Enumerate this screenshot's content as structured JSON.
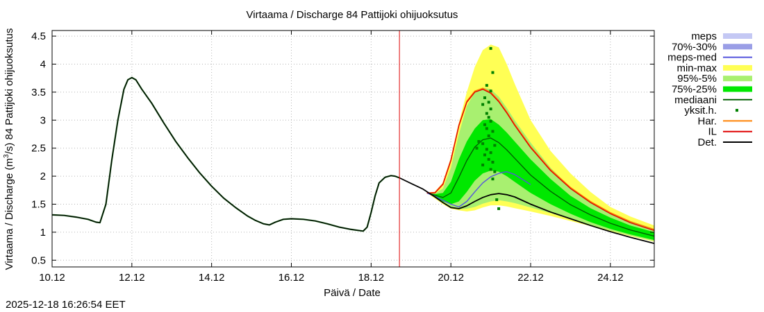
{
  "chart_data": {
    "type": "line",
    "title": "Virtaama / Discharge  84 Pattijoki ohijuoksutus",
    "xlabel": "Päivä / Date",
    "ylabel_prefix": "Virtaama / Discharge (m",
    "ylabel_sup": "3",
    "ylabel_suffix": "/s)  84 Pattijoki ohijuoksutus",
    "x_unit": "days since 10.12",
    "xlim": [
      0,
      15.1
    ],
    "ylim": [
      0.38,
      4.6
    ],
    "x_ticks": [
      {
        "x": 0,
        "label": "10.12"
      },
      {
        "x": 2,
        "label": "12.12"
      },
      {
        "x": 4,
        "label": "14.12"
      },
      {
        "x": 6,
        "label": "16.12"
      },
      {
        "x": 8,
        "label": "18.12"
      },
      {
        "x": 10,
        "label": "20.12"
      },
      {
        "x": 12,
        "label": "22.12"
      },
      {
        "x": 14,
        "label": "24.12"
      }
    ],
    "y_ticks": [
      {
        "y": 0.5,
        "label": "0.5"
      },
      {
        "y": 1,
        "label": "1"
      },
      {
        "y": 1.5,
        "label": "1.5"
      },
      {
        "y": 2,
        "label": "2"
      },
      {
        "y": 2.5,
        "label": "2.5"
      },
      {
        "y": 3,
        "label": "3"
      },
      {
        "y": 3.5,
        "label": "3.5"
      },
      {
        "y": 4,
        "label": "4"
      },
      {
        "y": 4.5,
        "label": "4.5"
      }
    ],
    "grid": true,
    "now_x": 8.71,
    "now_color": "#e00000",
    "observed": {
      "name": "Det.",
      "color": "#000000",
      "x": [
        0,
        0.3,
        0.6,
        0.9,
        1.1,
        1.2,
        1.35,
        1.5,
        1.65,
        1.8,
        1.9,
        2.0,
        2.1,
        2.25,
        2.5,
        2.8,
        3.1,
        3.4,
        3.7,
        4.0,
        4.3,
        4.6,
        4.9,
        5.1,
        5.3,
        5.45,
        5.6,
        5.8,
        6.0,
        6.3,
        6.6,
        6.9,
        7.2,
        7.5,
        7.8,
        7.9,
        8.0,
        8.1,
        8.2,
        8.35,
        8.5,
        8.6,
        8.71
      ],
      "y": [
        1.31,
        1.3,
        1.27,
        1.23,
        1.18,
        1.17,
        1.5,
        2.3,
        3.0,
        3.55,
        3.72,
        3.76,
        3.72,
        3.55,
        3.3,
        2.95,
        2.62,
        2.33,
        2.06,
        1.82,
        1.61,
        1.44,
        1.29,
        1.21,
        1.15,
        1.13,
        1.18,
        1.23,
        1.24,
        1.23,
        1.2,
        1.15,
        1.09,
        1.05,
        1.02,
        1.09,
        1.35,
        1.65,
        1.88,
        1.98,
        2.01,
        2.0,
        1.97
      ]
    },
    "bands": [
      {
        "name": "min-max",
        "color": "#ffff55",
        "x": [
          9.4,
          9.6,
          9.8,
          10.0,
          10.2,
          10.4,
          10.6,
          10.8,
          11.0,
          11.2,
          11.4,
          11.6,
          12.0,
          12.5,
          13.0,
          13.5,
          14.0,
          14.5,
          15.1
        ],
        "upper": [
          1.7,
          1.7,
          1.83,
          2.3,
          2.95,
          3.5,
          3.95,
          4.25,
          4.35,
          4.3,
          4.0,
          3.65,
          3.0,
          2.45,
          2.05,
          1.72,
          1.45,
          1.28,
          1.12
        ],
        "lower": [
          1.7,
          1.6,
          1.5,
          1.42,
          1.39,
          1.37,
          1.39,
          1.44,
          1.48,
          1.48,
          1.46,
          1.43,
          1.37,
          1.29,
          1.2,
          1.11,
          1.02,
          0.93,
          0.83
        ]
      },
      {
        "name": "95%-5%",
        "color": "#a8f070",
        "x": [
          9.4,
          9.6,
          9.8,
          10.0,
          10.2,
          10.4,
          10.6,
          10.8,
          11.0,
          11.2,
          11.4,
          11.6,
          12.0,
          12.5,
          13.0,
          13.5,
          14.0,
          14.5,
          15.1
        ],
        "upper": [
          1.7,
          1.69,
          1.78,
          2.15,
          2.75,
          3.25,
          3.5,
          3.58,
          3.55,
          3.42,
          3.22,
          3.0,
          2.6,
          2.15,
          1.8,
          1.55,
          1.35,
          1.2,
          1.06
        ],
        "lower": [
          1.7,
          1.62,
          1.52,
          1.45,
          1.41,
          1.42,
          1.45,
          1.51,
          1.55,
          1.57,
          1.55,
          1.52,
          1.44,
          1.34,
          1.23,
          1.13,
          1.03,
          0.94,
          0.84
        ]
      },
      {
        "name": "75%-25%",
        "color": "#00e800",
        "x": [
          9.4,
          9.6,
          9.8,
          10.0,
          10.2,
          10.4,
          10.6,
          10.8,
          11.0,
          11.2,
          11.4,
          11.6,
          12.0,
          12.5,
          13.0,
          13.5,
          14.0,
          14.5,
          15.1
        ],
        "upper": [
          1.7,
          1.68,
          1.7,
          1.9,
          2.3,
          2.62,
          2.85,
          3.0,
          3.02,
          2.92,
          2.78,
          2.62,
          2.3,
          1.95,
          1.65,
          1.43,
          1.26,
          1.12,
          1.0
        ],
        "lower": [
          1.7,
          1.63,
          1.55,
          1.5,
          1.55,
          1.72,
          1.92,
          2.05,
          2.1,
          2.08,
          2.0,
          1.9,
          1.7,
          1.5,
          1.33,
          1.18,
          1.06,
          0.96,
          0.86
        ]
      }
    ],
    "series": [
      {
        "name": "mediaani",
        "color": "#006000",
        "x": [
          9.4,
          9.6,
          9.8,
          10.0,
          10.2,
          10.4,
          10.6,
          10.8,
          11.0,
          11.2,
          11.4,
          11.6,
          12.0,
          12.5,
          13.0,
          13.5,
          14.0,
          14.5,
          15.1
        ],
        "y": [
          1.7,
          1.66,
          1.62,
          1.7,
          1.98,
          2.28,
          2.52,
          2.65,
          2.68,
          2.6,
          2.47,
          2.32,
          2.02,
          1.73,
          1.49,
          1.31,
          1.16,
          1.04,
          0.93
        ]
      },
      {
        "name": "meps-med",
        "color": "#5555dd",
        "x": [
          9.4,
          9.6,
          9.8,
          10.0,
          10.2,
          10.4,
          10.6,
          10.8,
          11.0,
          11.2,
          11.4,
          11.6,
          11.8,
          12.0
        ],
        "y": [
          1.7,
          1.64,
          1.57,
          1.5,
          1.45,
          1.55,
          1.72,
          1.88,
          1.99,
          2.05,
          2.08,
          2.03,
          1.94,
          1.85
        ]
      },
      {
        "name": "Har.",
        "color": "#ff8000",
        "x": [
          9.4,
          9.6,
          9.8,
          10.0,
          10.2,
          10.4,
          10.6,
          10.8,
          11.0,
          11.2,
          11.4,
          11.6,
          12.0,
          12.5,
          13.0,
          13.5,
          14.0,
          14.5,
          15.1
        ],
        "y": [
          1.7,
          1.71,
          1.87,
          2.3,
          2.92,
          3.34,
          3.52,
          3.57,
          3.5,
          3.35,
          3.15,
          2.93,
          2.53,
          2.12,
          1.8,
          1.55,
          1.35,
          1.19,
          1.05
        ]
      },
      {
        "name": "IL",
        "color": "#e00000",
        "x": [
          9.4,
          9.6,
          9.8,
          10.0,
          10.2,
          10.4,
          10.6,
          10.8,
          11.0,
          11.2,
          11.4,
          11.6,
          12.0,
          12.5,
          13.0,
          13.5,
          14.0,
          14.5,
          15.1
        ],
        "y": [
          1.7,
          1.7,
          1.85,
          2.28,
          2.9,
          3.32,
          3.5,
          3.55,
          3.48,
          3.33,
          3.13,
          2.91,
          2.51,
          2.1,
          1.78,
          1.53,
          1.33,
          1.17,
          1.03
        ]
      },
      {
        "name": "Det.",
        "color": "#000000",
        "x": [
          8.71,
          9.0,
          9.3,
          9.6,
          9.8,
          10.0,
          10.2,
          10.4,
          10.6,
          10.8,
          11.0,
          11.2,
          11.4,
          11.6,
          12.0,
          12.5,
          13.0,
          13.5,
          14.0,
          14.5,
          15.1
        ],
        "y": [
          1.97,
          1.87,
          1.77,
          1.63,
          1.53,
          1.44,
          1.42,
          1.47,
          1.55,
          1.62,
          1.67,
          1.69,
          1.67,
          1.63,
          1.5,
          1.36,
          1.24,
          1.12,
          1.01,
          0.91,
          0.8
        ]
      }
    ],
    "scatter": {
      "name": "yksit.h.",
      "color": "#008000",
      "points": [
        [
          11.0,
          4.28
        ],
        [
          11.05,
          3.85
        ],
        [
          10.9,
          3.62
        ],
        [
          11.0,
          3.52
        ],
        [
          10.85,
          3.4
        ],
        [
          10.95,
          3.32
        ],
        [
          10.8,
          3.28
        ],
        [
          11.0,
          3.2
        ],
        [
          10.9,
          3.12
        ],
        [
          10.95,
          3.05
        ],
        [
          11.0,
          2.98
        ],
        [
          10.85,
          2.92
        ],
        [
          10.9,
          2.85
        ],
        [
          11.05,
          2.8
        ],
        [
          10.95,
          2.72
        ],
        [
          10.7,
          2.62
        ],
        [
          10.8,
          2.58
        ],
        [
          11.1,
          2.55
        ],
        [
          10.65,
          2.5
        ],
        [
          10.9,
          2.48
        ],
        [
          11.0,
          2.42
        ],
        [
          10.85,
          2.38
        ],
        [
          10.95,
          2.3
        ],
        [
          11.05,
          2.25
        ],
        [
          10.8,
          2.2
        ],
        [
          11.0,
          2.12
        ],
        [
          11.1,
          2.08
        ],
        [
          11.05,
          1.95
        ],
        [
          11.15,
          1.58
        ],
        [
          11.2,
          1.42
        ]
      ]
    },
    "legend": {
      "position": "right",
      "entries": [
        {
          "label": "meps",
          "kind": "box",
          "color": "#c4c8f4"
        },
        {
          "label": "70%-30%",
          "kind": "box",
          "color": "#9a9ee6"
        },
        {
          "label": "meps-med",
          "kind": "line",
          "color": "#5555dd"
        },
        {
          "label": "min-max",
          "kind": "box",
          "color": "#ffff55"
        },
        {
          "label": "95%-5%",
          "kind": "box",
          "color": "#a8f070"
        },
        {
          "label": "75%-25%",
          "kind": "box",
          "color": "#00e800"
        },
        {
          "label": "mediaani",
          "kind": "line",
          "color": "#006000"
        },
        {
          "label": "yksit.h.",
          "kind": "point",
          "color": "#008000"
        },
        {
          "label": "Har.",
          "kind": "line",
          "color": "#ff8000"
        },
        {
          "label": "IL",
          "kind": "line",
          "color": "#e00000"
        },
        {
          "label": "Det.",
          "kind": "line",
          "color": "#000000"
        }
      ]
    }
  },
  "timestamp": "2025-12-18 16:26:54 EET"
}
